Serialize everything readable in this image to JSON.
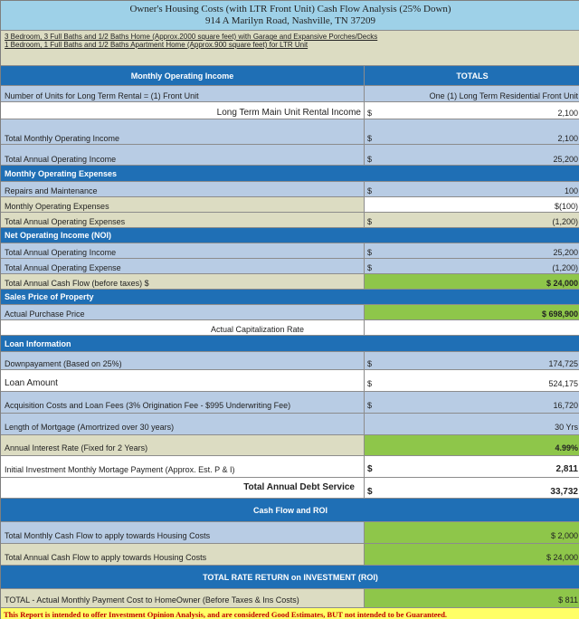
{
  "report": {
    "title_line1": "Owner's Housing Costs (with LTR  Front Unit) Cash Flow Analysis  (25% Down)",
    "title_line2": "914 A Marilyn Road, Nashville, TN  37209",
    "desc_line1": "3 Bedroom, 3 Full Baths and  1/2 Baths Home (Approx.2000 square feet) with Garage and Expansive Porches/Decks",
    "desc_line2": "1 Bedroom, 1 Full Baths and  1/2 Baths Apartment Home (Approx.900 square feet) for LTR Unit",
    "footer": "This Report is intended to offer Investment Opinion Analysis, and are considered Good Estimates, BUT not intended to be Guaranteed."
  },
  "header": {
    "left": "Monthly Operating Income",
    "right": "TOTALS"
  },
  "sections": {
    "expenses": "Monthly Operating Expenses",
    "noi": "Net Operating Income (NOI)",
    "sales": "Sales Price of Property",
    "cap_rate": "Actual Capitalization Rate",
    "loan": "Loan Information",
    "cashflow": "Cash Flow and ROI",
    "roi": "TOTAL RATE RETURN on INVESTMENT (ROI)"
  },
  "rows": {
    "units": {
      "label": "Number of Units for Long Term Rental = (1) Front Unit",
      "value": "One (1) Long Term Residential Front Unit"
    },
    "ltr_income": {
      "label": "Long Term Main Unit Rental Income",
      "cur": "$",
      "value": "2,100"
    },
    "total_monthly_income": {
      "label": "Total Monthly Operating Income",
      "cur": "$",
      "value": "2,100"
    },
    "total_annual_income": {
      "label": "Total Annual Operating Income",
      "cur": "$",
      "value": "25,200"
    },
    "repairs": {
      "label": "Repairs and Maintenance",
      "cur": "$",
      "value": "100"
    },
    "monthly_expenses": {
      "label": "Monthly Operating Expenses",
      "value": "$(100)"
    },
    "annual_expenses": {
      "label": "Total Annual Operating Expenses",
      "cur": "$",
      "value": "(1,200)"
    },
    "noi_income": {
      "label": "Total Annual Operating Income",
      "cur": "$",
      "value": "25,200"
    },
    "noi_expense": {
      "label": "Total Annual Operating Expense",
      "cur": "$",
      "value": "(1,200)"
    },
    "annual_cash_flow": {
      "label": "Total Annual Cash Flow (before taxes)  $",
      "value": "$ 24,000"
    },
    "purchase_price": {
      "label": "Actual Purchase Price",
      "value": "$ 698,900"
    },
    "downpayment": {
      "label": "Downpayament (Based on 25%)",
      "cur": "$",
      "value": "174,725"
    },
    "loan_amount": {
      "label": "Loan Amount",
      "cur": "$",
      "value": "524,175"
    },
    "acquisition": {
      "label": "Acquisition Costs and Loan Fees (3% Origination Fee - $995 Underwriting Fee)",
      "cur": "$",
      "value": "16,720"
    },
    "mortgage_length": {
      "label": "Length of Mortgage (Amortrized over 30 years)",
      "value": "30 Yrs"
    },
    "interest_rate": {
      "label": "Annual Interest Rate (Fixed for 2 Years)",
      "value": "4.99%"
    },
    "monthly_payment": {
      "label": "Initial Investment Monthly Mortage Payment (Approx. Est. P & I)",
      "cur": "$",
      "value": "2,811"
    },
    "annual_debt": {
      "label": "Total Annual Debt Service",
      "cur": "$",
      "value": "33,732"
    },
    "monthly_cash_flow": {
      "label": "Total Monthly Cash Flow to apply towards Housing Costs",
      "value": "$ 2,000"
    },
    "annual_cash_flow_housing": {
      "label": "Total Annual Cash Flow to apply towards Housing Costs",
      "value": "$ 24,000"
    },
    "homeowner_cost": {
      "label": "TOTAL - Actual Monthly Payment Cost to HomeOwner (Before Taxes & Ins Costs)",
      "value": "$ 811"
    }
  }
}
